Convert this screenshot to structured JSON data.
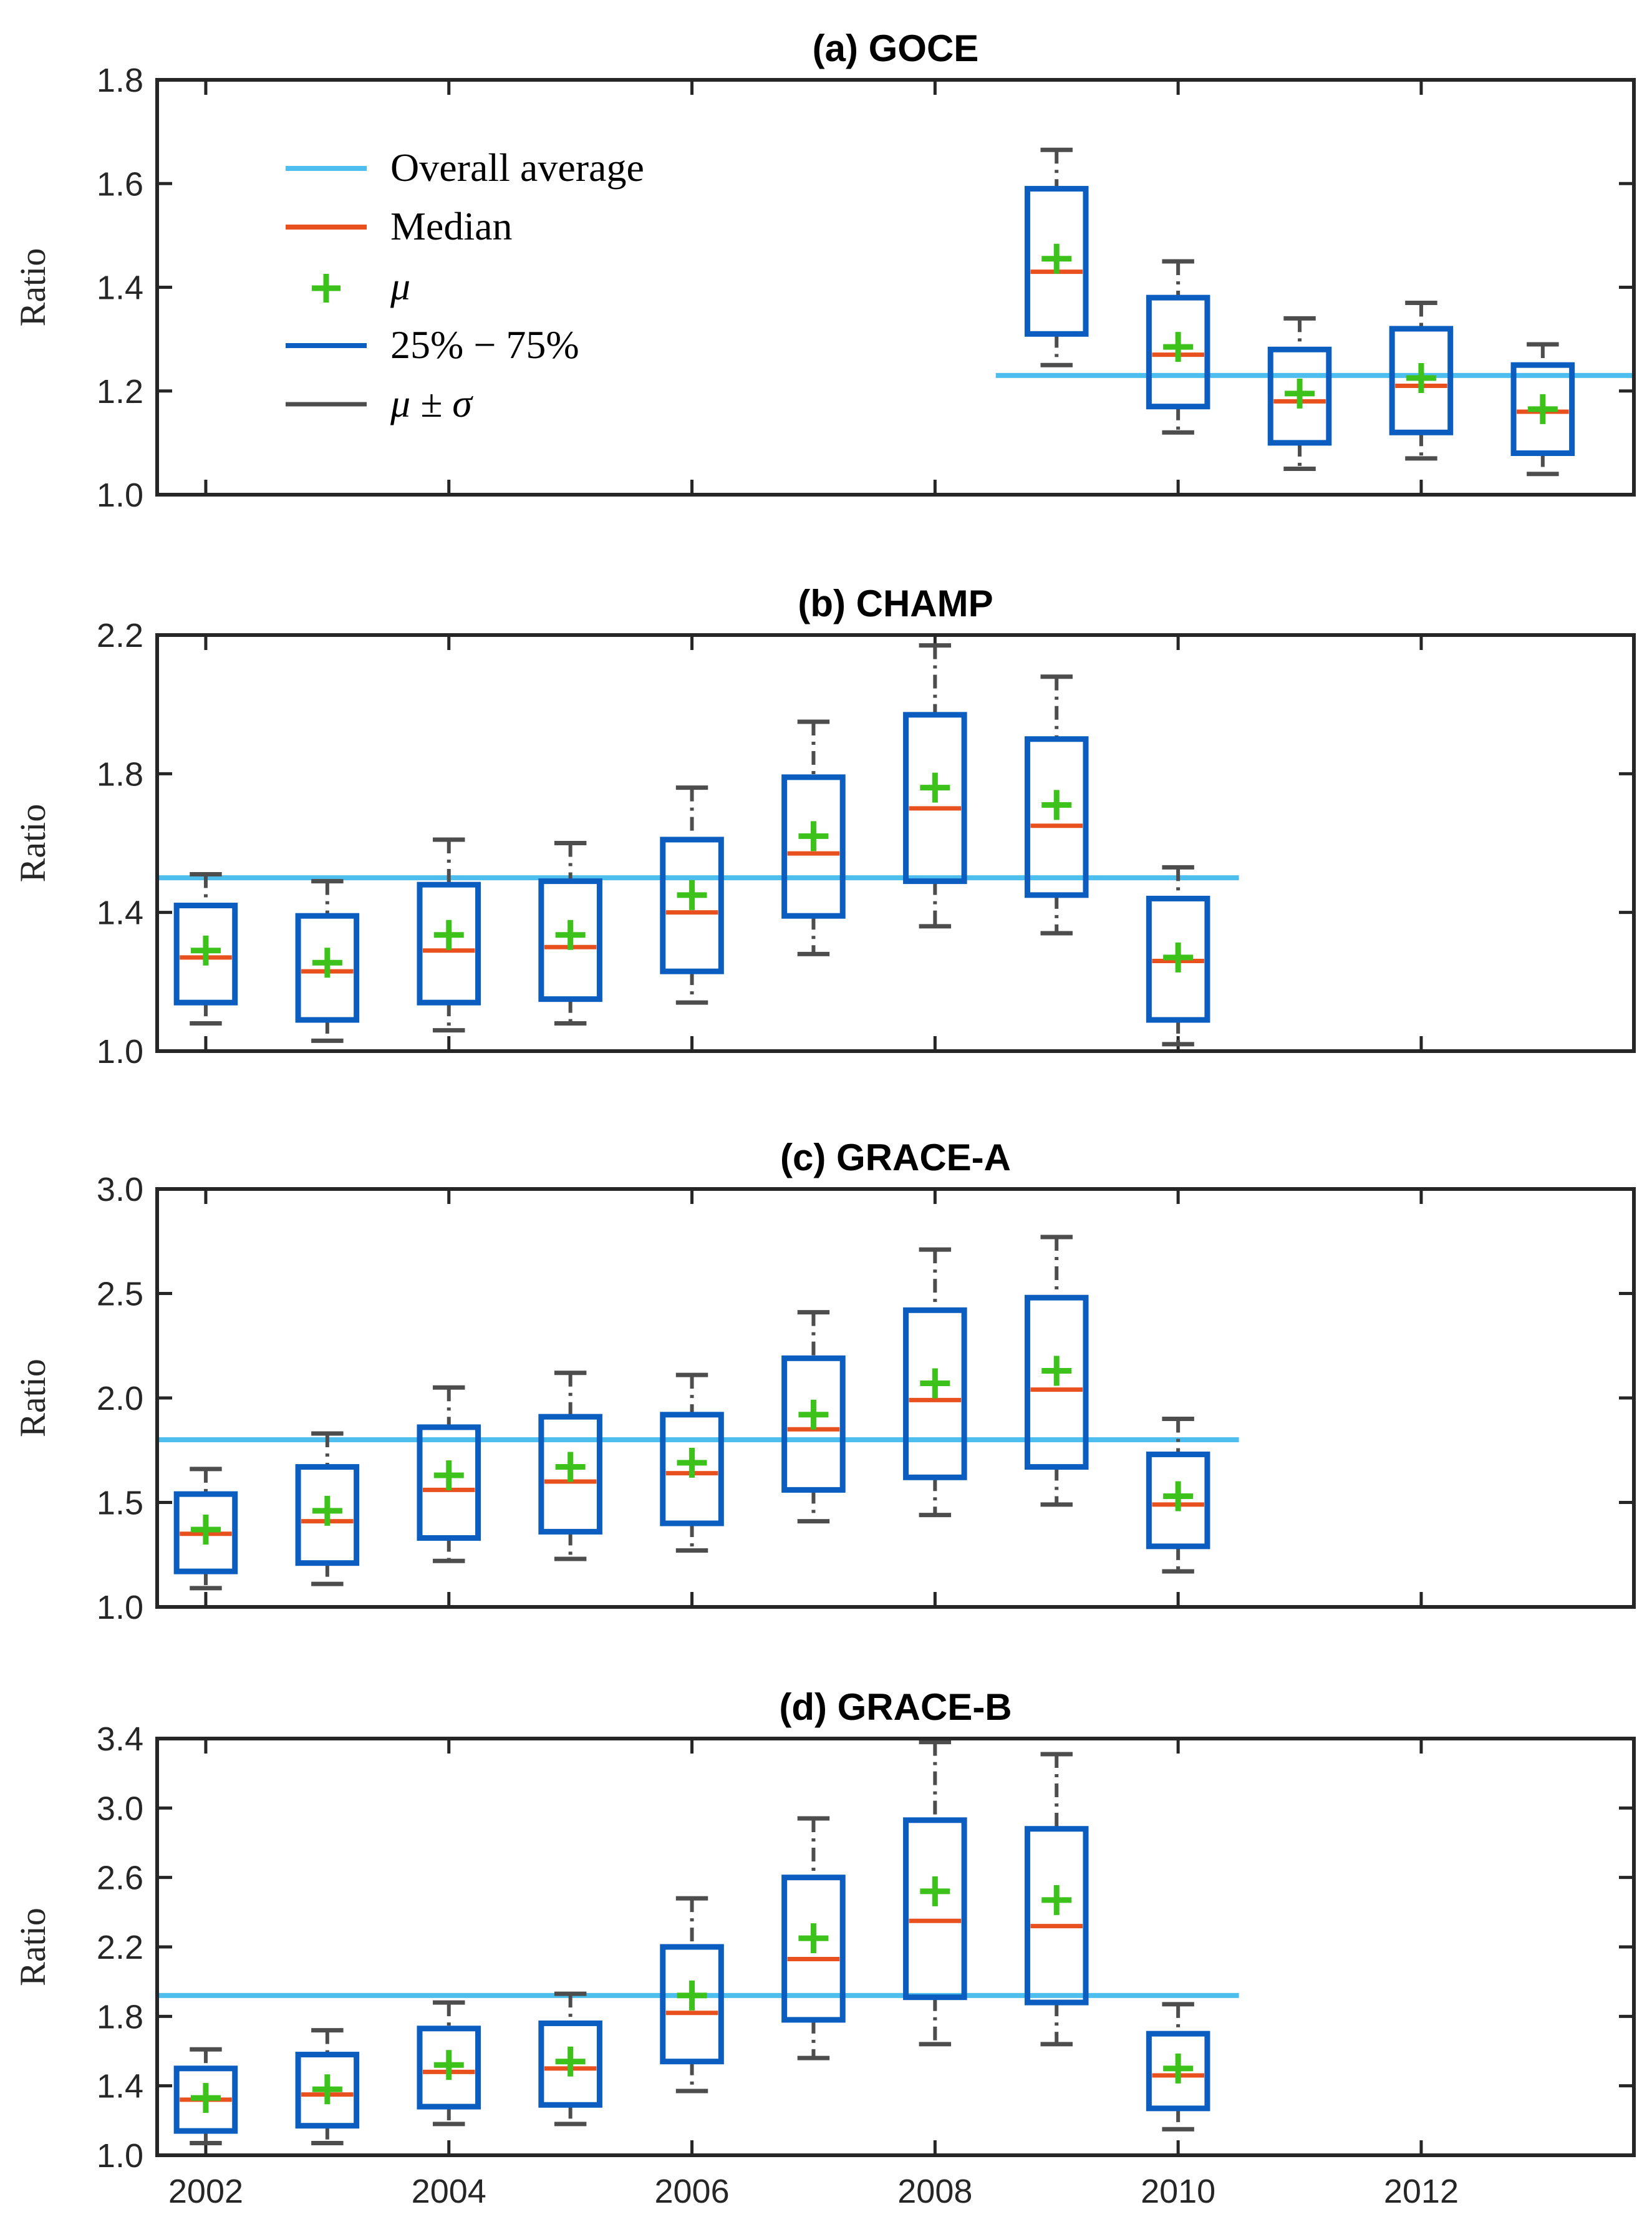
{
  "colors": {
    "average": "#4DBEEE",
    "median": "#E8501E",
    "mean": "#3CC21A",
    "box": "#0B5EBF",
    "whisker": "#4D4D4D",
    "axis": "#262626"
  },
  "legend": {
    "items": [
      {
        "label": "Overall average",
        "symbol": "line-average"
      },
      {
        "label": "Median",
        "symbol": "line-median"
      },
      {
        "label": "μ",
        "symbol": "plus-mean"
      },
      {
        "label": "25% − 75%",
        "symbol": "line-box"
      },
      {
        "label": "μ ± σ",
        "symbol": "line-whisker"
      }
    ]
  },
  "chart_data": [
    {
      "type": "box",
      "title": "(a) GOCE",
      "ylabel": "Ratio",
      "xlim": [
        2001.6,
        2013.75
      ],
      "xticks": [
        2002,
        2004,
        2006,
        2008,
        2010,
        2012
      ],
      "ylim": [
        1.0,
        1.8
      ],
      "yticks": [
        "1.0",
        "1.2",
        "1.4",
        "1.6",
        "1.8"
      ],
      "average": 1.23,
      "average_range": [
        2008.5,
        2013.75
      ],
      "boxes": [
        {
          "year": 2009,
          "q1": 1.31,
          "median": 1.43,
          "q3": 1.59,
          "mean": 1.455,
          "lower": 1.25,
          "upper": 1.665
        },
        {
          "year": 2010,
          "q1": 1.17,
          "median": 1.27,
          "q3": 1.38,
          "mean": 1.285,
          "lower": 1.12,
          "upper": 1.45
        },
        {
          "year": 2011,
          "q1": 1.1,
          "median": 1.18,
          "q3": 1.28,
          "mean": 1.195,
          "lower": 1.05,
          "upper": 1.34
        },
        {
          "year": 2012,
          "q1": 1.12,
          "median": 1.21,
          "q3": 1.32,
          "mean": 1.225,
          "lower": 1.07,
          "upper": 1.37
        },
        {
          "year": 2013,
          "q1": 1.08,
          "median": 1.16,
          "q3": 1.25,
          "mean": 1.165,
          "lower": 1.04,
          "upper": 1.29
        }
      ]
    },
    {
      "type": "box",
      "title": "(b) CHAMP",
      "ylabel": "Ratio",
      "xlim": [
        2001.6,
        2013.75
      ],
      "xticks": [
        2002,
        2004,
        2006,
        2008,
        2010,
        2012
      ],
      "ylim": [
        1.0,
        2.2
      ],
      "yticks": [
        "1.0",
        "1.4",
        "1.8",
        "2.2"
      ],
      "average": 1.5,
      "average_range": [
        2001.6,
        2010.5
      ],
      "boxes": [
        {
          "year": 2002,
          "q1": 1.14,
          "median": 1.27,
          "q3": 1.42,
          "mean": 1.29,
          "lower": 1.08,
          "upper": 1.51
        },
        {
          "year": 2003,
          "q1": 1.09,
          "median": 1.23,
          "q3": 1.39,
          "mean": 1.255,
          "lower": 1.03,
          "upper": 1.49
        },
        {
          "year": 2004,
          "q1": 1.14,
          "median": 1.29,
          "q3": 1.48,
          "mean": 1.335,
          "lower": 1.06,
          "upper": 1.61
        },
        {
          "year": 2005,
          "q1": 1.15,
          "median": 1.3,
          "q3": 1.49,
          "mean": 1.335,
          "lower": 1.08,
          "upper": 1.6
        },
        {
          "year": 2006,
          "q1": 1.23,
          "median": 1.4,
          "q3": 1.61,
          "mean": 1.45,
          "lower": 1.14,
          "upper": 1.76
        },
        {
          "year": 2007,
          "q1": 1.39,
          "median": 1.57,
          "q3": 1.79,
          "mean": 1.62,
          "lower": 1.28,
          "upper": 1.95
        },
        {
          "year": 2008,
          "q1": 1.49,
          "median": 1.7,
          "q3": 1.97,
          "mean": 1.76,
          "lower": 1.36,
          "upper": 2.17
        },
        {
          "year": 2009,
          "q1": 1.45,
          "median": 1.65,
          "q3": 1.9,
          "mean": 1.71,
          "lower": 1.34,
          "upper": 2.08
        },
        {
          "year": 2010,
          "q1": 1.09,
          "median": 1.26,
          "q3": 1.44,
          "mean": 1.27,
          "lower": 1.02,
          "upper": 1.53
        }
      ]
    },
    {
      "type": "box",
      "title": "(c) GRACE-A",
      "ylabel": "Ratio",
      "xlim": [
        2001.6,
        2013.75
      ],
      "xticks": [
        2002,
        2004,
        2006,
        2008,
        2010,
        2012
      ],
      "ylim": [
        1.0,
        3.0
      ],
      "yticks": [
        "1.0",
        "1.5",
        "2.0",
        "2.5",
        "3.0"
      ],
      "average": 1.8,
      "average_range": [
        2001.6,
        2010.5
      ],
      "boxes": [
        {
          "year": 2002,
          "q1": 1.17,
          "median": 1.35,
          "q3": 1.54,
          "mean": 1.37,
          "lower": 1.09,
          "upper": 1.66
        },
        {
          "year": 2003,
          "q1": 1.21,
          "median": 1.41,
          "q3": 1.67,
          "mean": 1.46,
          "lower": 1.11,
          "upper": 1.83
        },
        {
          "year": 2004,
          "q1": 1.33,
          "median": 1.56,
          "q3": 1.86,
          "mean": 1.63,
          "lower": 1.22,
          "upper": 2.05
        },
        {
          "year": 2005,
          "q1": 1.36,
          "median": 1.6,
          "q3": 1.91,
          "mean": 1.67,
          "lower": 1.23,
          "upper": 2.12
        },
        {
          "year": 2006,
          "q1": 1.4,
          "median": 1.64,
          "q3": 1.92,
          "mean": 1.69,
          "lower": 1.27,
          "upper": 2.11
        },
        {
          "year": 2007,
          "q1": 1.56,
          "median": 1.85,
          "q3": 2.19,
          "mean": 1.92,
          "lower": 1.41,
          "upper": 2.41
        },
        {
          "year": 2008,
          "q1": 1.62,
          "median": 1.99,
          "q3": 2.42,
          "mean": 2.07,
          "lower": 1.44,
          "upper": 2.71
        },
        {
          "year": 2009,
          "q1": 1.67,
          "median": 2.04,
          "q3": 2.48,
          "mean": 2.13,
          "lower": 1.49,
          "upper": 2.77
        },
        {
          "year": 2010,
          "q1": 1.29,
          "median": 1.49,
          "q3": 1.73,
          "mean": 1.53,
          "lower": 1.17,
          "upper": 1.9
        }
      ]
    },
    {
      "type": "box",
      "title": "(d) GRACE-B",
      "ylabel": "Ratio",
      "xlim": [
        2001.6,
        2013.75
      ],
      "xticks": [
        2002,
        2004,
        2006,
        2008,
        2010,
        2012
      ],
      "xticklabels": [
        "2002",
        "2004",
        "2006",
        "2008",
        "2010",
        "2012"
      ],
      "ylim": [
        1.0,
        3.4
      ],
      "yticks": [
        "1.0",
        "1.4",
        "1.8",
        "2.2",
        "2.6",
        "3.0",
        "3.4"
      ],
      "average": 1.92,
      "average_range": [
        2001.6,
        2010.5
      ],
      "boxes": [
        {
          "year": 2002,
          "q1": 1.14,
          "median": 1.32,
          "q3": 1.5,
          "mean": 1.33,
          "lower": 1.07,
          "upper": 1.61
        },
        {
          "year": 2003,
          "q1": 1.17,
          "median": 1.35,
          "q3": 1.58,
          "mean": 1.38,
          "lower": 1.07,
          "upper": 1.72
        },
        {
          "year": 2004,
          "q1": 1.28,
          "median": 1.48,
          "q3": 1.73,
          "mean": 1.52,
          "lower": 1.18,
          "upper": 1.88
        },
        {
          "year": 2005,
          "q1": 1.29,
          "median": 1.5,
          "q3": 1.76,
          "mean": 1.54,
          "lower": 1.18,
          "upper": 1.93
        },
        {
          "year": 2006,
          "q1": 1.54,
          "median": 1.82,
          "q3": 2.2,
          "mean": 1.92,
          "lower": 1.37,
          "upper": 2.48
        },
        {
          "year": 2007,
          "q1": 1.78,
          "median": 2.13,
          "q3": 2.6,
          "mean": 2.25,
          "lower": 1.56,
          "upper": 2.94
        },
        {
          "year": 2008,
          "q1": 1.91,
          "median": 2.35,
          "q3": 2.93,
          "mean": 2.52,
          "lower": 1.64,
          "upper": 3.38
        },
        {
          "year": 2009,
          "q1": 1.88,
          "median": 2.32,
          "q3": 2.88,
          "mean": 2.47,
          "lower": 1.64,
          "upper": 3.31
        },
        {
          "year": 2010,
          "q1": 1.27,
          "median": 1.46,
          "q3": 1.7,
          "mean": 1.5,
          "lower": 1.15,
          "upper": 1.87
        }
      ]
    }
  ]
}
